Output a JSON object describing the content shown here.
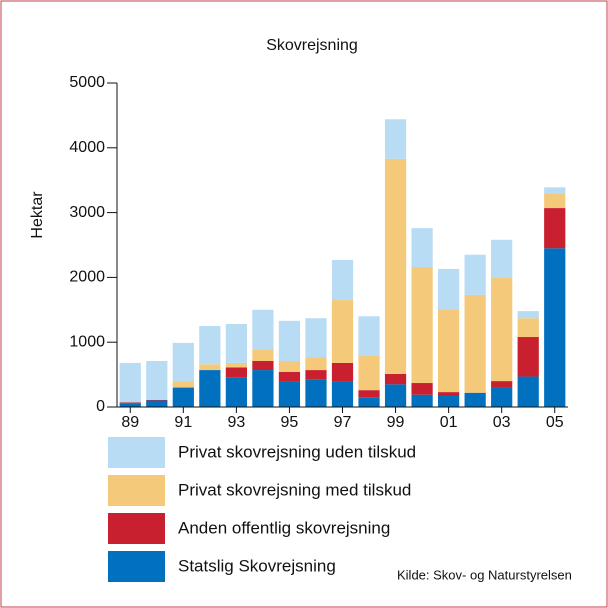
{
  "chart_data": {
    "type": "stacked_bar",
    "title": "Skovrejsning",
    "y_label": "Hektar",
    "categories": [
      "89",
      null,
      "91",
      null,
      "93",
      null,
      "95",
      null,
      "97",
      null,
      "99",
      null,
      "01",
      null,
      "03",
      null,
      "05"
    ],
    "series": [
      {
        "name": "Statslig Skovrejsning",
        "color": "#0070bf",
        "values": [
          50,
          100,
          300,
          570,
          460,
          570,
          400,
          420,
          400,
          150,
          350,
          190,
          170,
          220,
          300,
          470,
          2450
        ]
      },
      {
        "name": "Anden offentlig skovrejsning",
        "color": "#c8202f",
        "values": [
          20,
          10,
          0,
          0,
          150,
          140,
          140,
          150,
          280,
          110,
          160,
          180,
          60,
          0,
          100,
          610,
          620
        ]
      },
      {
        "name": "Privat skovrejsning med tilskud",
        "color": "#f5c97a",
        "values": [
          0,
          0,
          100,
          90,
          70,
          170,
          170,
          200,
          970,
          540,
          3320,
          1790,
          1280,
          1510,
          1590,
          290,
          230
        ]
      },
      {
        "name": "Privat skovrejsning uden tilskud",
        "color": "#b8dcf4",
        "values": [
          610,
          600,
          590,
          590,
          600,
          620,
          620,
          600,
          620,
          600,
          610,
          600,
          620,
          620,
          590,
          110,
          90
        ]
      }
    ],
    "ylim": [
      0,
      5000
    ],
    "yticks": [
      0,
      1000,
      2000,
      3000,
      4000,
      5000
    ],
    "source": "Kilde: Skov- og Naturstyrelsen"
  }
}
